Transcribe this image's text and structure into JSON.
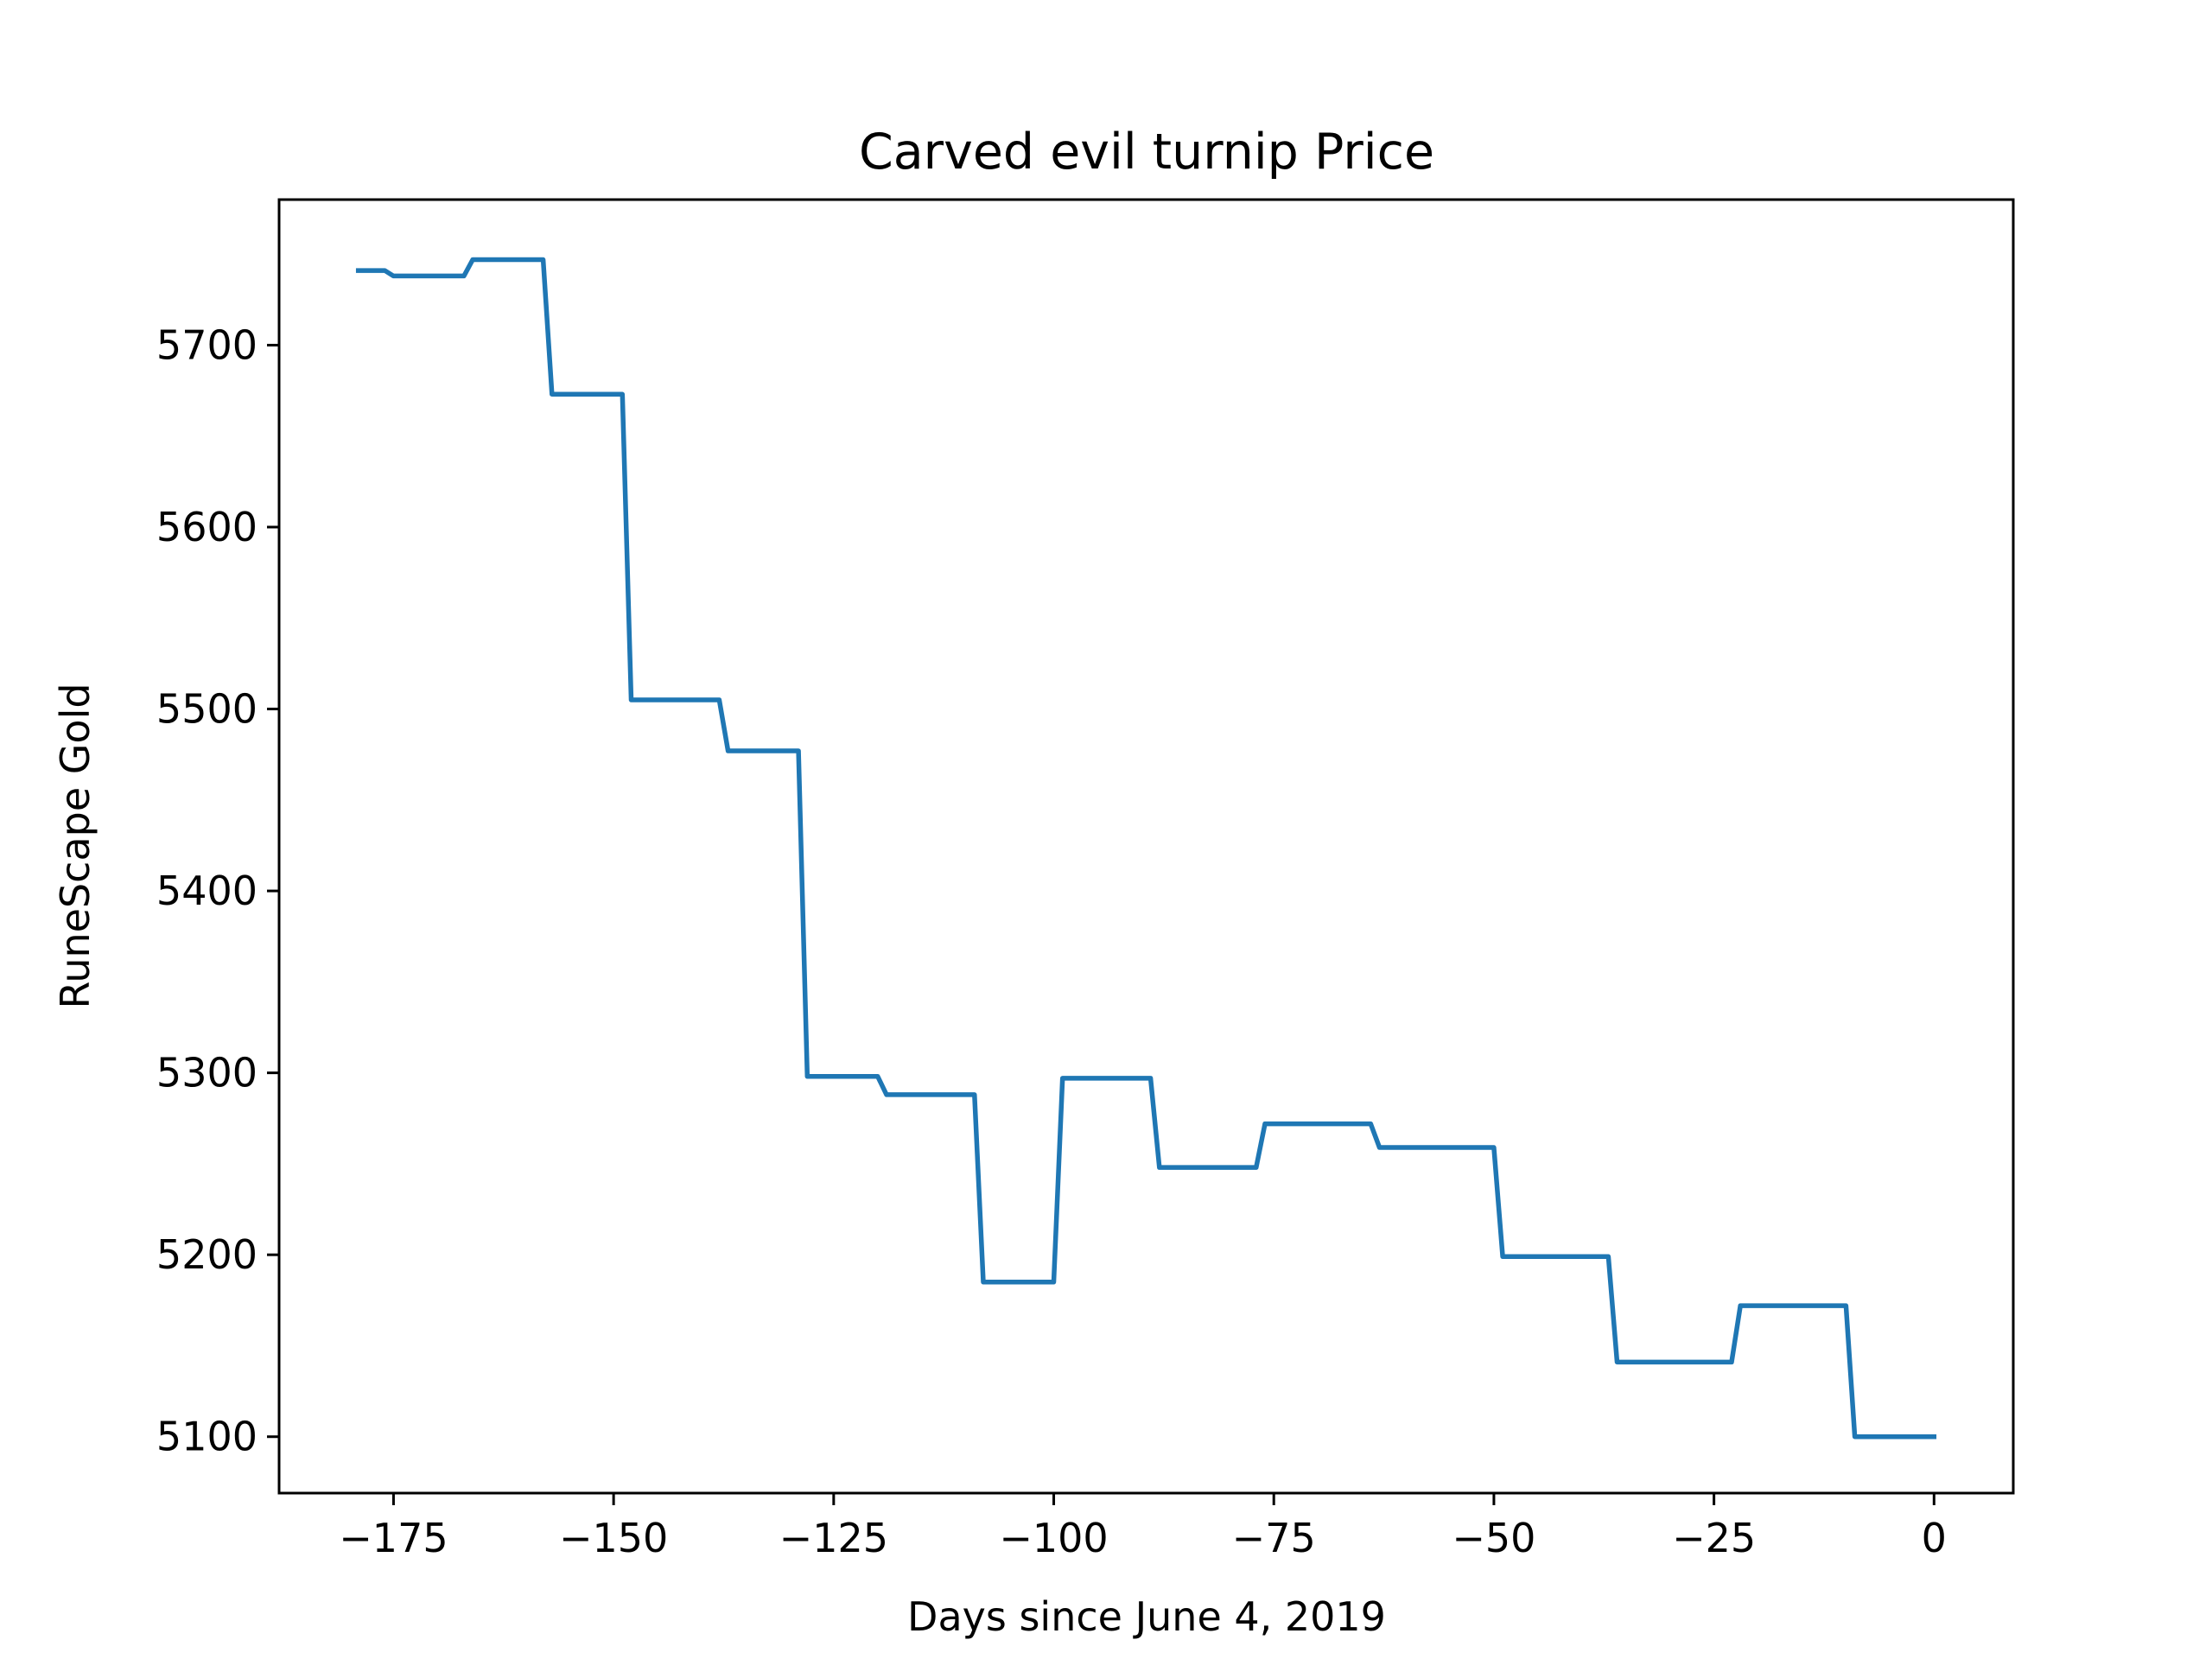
{
  "chart_data": {
    "type": "line",
    "title": "Carved evil turnip Price",
    "xlabel": "Days since June 4, 2019",
    "ylabel": "RuneScape Gold",
    "xlim": [
      -188,
      9
    ],
    "ylim": [
      5069,
      5780
    ],
    "grid": false,
    "x_ticks": [
      -175,
      -150,
      -125,
      -100,
      -75,
      -50,
      -25,
      0
    ],
    "x_tick_labels": [
      "−175",
      "−150",
      "−125",
      "−100",
      "−75",
      "−50",
      "−25",
      "0"
    ],
    "y_ticks": [
      5100,
      5200,
      5300,
      5400,
      5500,
      5600,
      5700
    ],
    "y_tick_labels": [
      "5100",
      "5200",
      "5300",
      "5400",
      "5500",
      "5600",
      "5700"
    ],
    "series": [
      {
        "name": "Carved evil turnip",
        "color": "#1f77b4",
        "x": [
          -179,
          -176,
          -175,
          -174,
          -167,
          -166,
          -158,
          -157,
          -149,
          -148,
          -138,
          -137,
          -129,
          -128,
          -120,
          -119,
          -109,
          -108,
          -100,
          -99,
          -89,
          -88,
          -77,
          -76,
          -64,
          -63,
          -50,
          -49,
          -37,
          -36,
          -23,
          -22,
          -10,
          -9,
          0
        ],
        "y": [
          5741,
          5741,
          5738,
          5738,
          5738,
          5747,
          5747,
          5673,
          5673,
          5505,
          5505,
          5477,
          5477,
          5298,
          5298,
          5288,
          5288,
          5185,
          5185,
          5297,
          5297,
          5248,
          5248,
          5272,
          5272,
          5259,
          5259,
          5199,
          5199,
          5141,
          5141,
          5172,
          5172,
          5100,
          5100
        ]
      }
    ]
  }
}
